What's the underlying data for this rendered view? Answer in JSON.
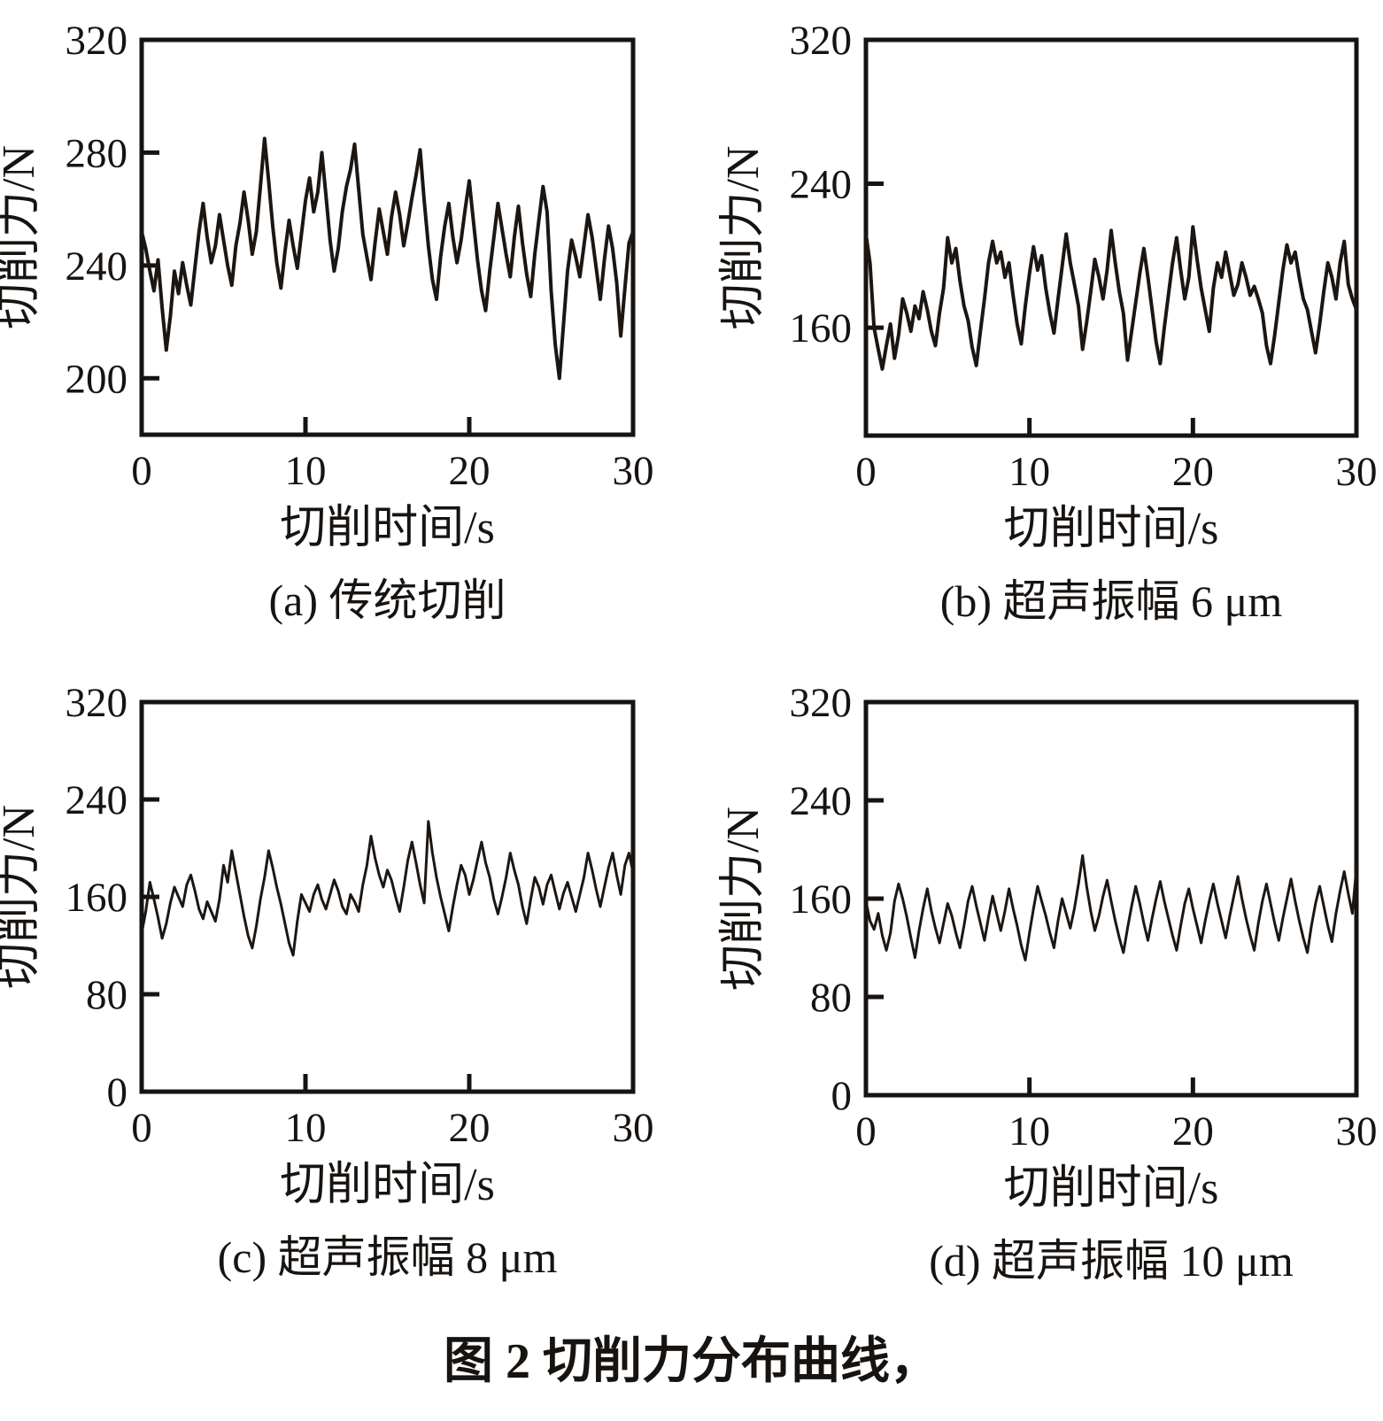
{
  "figure": {
    "title": "图 2  切削力分布曲线，"
  },
  "chart_data": [
    {
      "id": "a",
      "type": "line",
      "caption": "(a) 传统切削",
      "xlabel": "切削时间/s",
      "ylabel": "切削力/N",
      "xlim": [
        0,
        30
      ],
      "xticks": [
        0,
        10,
        20,
        30
      ],
      "ylim": [
        180,
        320
      ],
      "yticks": [
        200,
        240,
        280,
        320
      ],
      "x_step": 0.25,
      "line_color": "#1c1612",
      "values": [
        252,
        246,
        238,
        231,
        242,
        225,
        210,
        222,
        238,
        230,
        241,
        233,
        226,
        239,
        252,
        262,
        250,
        241,
        247,
        258,
        249,
        240,
        233,
        247,
        255,
        266,
        256,
        244,
        252,
        268,
        285,
        270,
        254,
        241,
        232,
        245,
        256,
        247,
        239,
        251,
        263,
        271,
        259,
        266,
        280,
        265,
        249,
        238,
        246,
        259,
        268,
        274,
        283,
        267,
        251,
        243,
        235,
        248,
        260,
        252,
        244,
        257,
        266,
        258,
        247,
        255,
        264,
        272,
        281,
        263,
        247,
        235,
        228,
        243,
        254,
        262,
        250,
        241,
        249,
        260,
        270,
        256,
        242,
        231,
        224,
        238,
        250,
        262,
        253,
        244,
        236,
        250,
        261,
        248,
        237,
        229,
        244,
        256,
        268,
        259,
        231,
        212,
        200,
        219,
        238,
        249,
        243,
        236,
        247,
        258,
        250,
        239,
        228,
        242,
        254,
        246,
        234,
        215,
        232,
        248,
        252
      ]
    },
    {
      "id": "b",
      "type": "line",
      "caption": "(b) 超声振幅 6 μm",
      "xlabel": "切削时间/s",
      "ylabel": "切削力/N",
      "xlim": [
        0,
        30
      ],
      "xticks": [
        0,
        10,
        20,
        30
      ],
      "ylim": [
        100,
        320
      ],
      "yticks": [
        160,
        240,
        320
      ],
      "x_step": 0.25,
      "line_color": "#1c1612",
      "values": [
        212,
        196,
        160,
        148,
        137,
        150,
        162,
        143,
        156,
        176,
        168,
        158,
        172,
        165,
        180,
        170,
        158,
        150,
        168,
        182,
        210,
        196,
        204,
        186,
        172,
        164,
        149,
        139,
        158,
        176,
        196,
        208,
        196,
        202,
        188,
        196,
        178,
        162,
        151,
        172,
        190,
        205,
        192,
        200,
        182,
        168,
        157,
        176,
        194,
        212,
        196,
        184,
        172,
        148,
        163,
        180,
        198,
        188,
        176,
        192,
        214,
        196,
        180,
        168,
        142,
        158,
        174,
        190,
        204,
        188,
        170,
        152,
        140,
        160,
        178,
        196,
        210,
        192,
        176,
        188,
        216,
        198,
        182,
        170,
        158,
        182,
        196,
        188,
        202,
        190,
        178,
        184,
        196,
        188,
        178,
        183,
        176,
        168,
        150,
        140,
        156,
        174,
        192,
        206,
        196,
        202,
        188,
        176,
        170,
        158,
        146,
        162,
        180,
        196,
        188,
        176,
        196,
        208,
        184,
        176,
        170
      ]
    },
    {
      "id": "c",
      "type": "line",
      "caption": "(c) 超声振幅 8 μm",
      "xlabel": "切削时间/s",
      "ylabel": "切削力/N",
      "xlim": [
        0,
        30
      ],
      "xticks": [
        0,
        10,
        20,
        30
      ],
      "ylim": [
        0,
        320
      ],
      "yticks": [
        0,
        80,
        160,
        240,
        320
      ],
      "x_step": 0.25,
      "line_color": "#1c1612",
      "values": [
        130,
        148,
        172,
        158,
        143,
        126,
        138,
        155,
        168,
        160,
        152,
        170,
        178,
        165,
        150,
        142,
        156,
        148,
        140,
        158,
        186,
        172,
        198,
        180,
        162,
        144,
        128,
        118,
        136,
        158,
        176,
        198,
        184,
        168,
        154,
        138,
        122,
        112,
        140,
        162,
        155,
        148,
        162,
        170,
        158,
        150,
        162,
        174,
        165,
        152,
        146,
        162,
        156,
        148,
        170,
        186,
        210,
        192,
        178,
        168,
        182,
        174,
        160,
        148,
        168,
        190,
        205,
        188,
        170,
        155,
        222,
        196,
        176,
        160,
        146,
        132,
        152,
        170,
        186,
        178,
        162,
        174,
        190,
        205,
        188,
        176,
        158,
        146,
        160,
        176,
        196,
        182,
        170,
        152,
        138,
        158,
        176,
        168,
        154,
        170,
        178,
        164,
        150,
        163,
        172,
        160,
        148,
        162,
        176,
        196,
        182,
        166,
        152,
        168,
        184,
        196,
        178,
        162,
        186,
        196,
        180
      ]
    },
    {
      "id": "d",
      "type": "line",
      "caption": "(d) 超声振幅 10 μm",
      "xlabel": "切削时间/s",
      "ylabel": "切削力/N",
      "xlim": [
        0,
        30
      ],
      "xticks": [
        0,
        10,
        20,
        30
      ],
      "ylim": [
        0,
        320
      ],
      "yticks": [
        0,
        80,
        160,
        240,
        320
      ],
      "x_step": 0.25,
      "line_color": "#1c1612",
      "values": [
        158,
        142,
        135,
        148,
        130,
        118,
        132,
        158,
        172,
        160,
        145,
        128,
        112,
        134,
        152,
        168,
        150,
        136,
        124,
        140,
        156,
        146,
        132,
        120,
        138,
        158,
        170,
        154,
        140,
        126,
        145,
        162,
        148,
        134,
        150,
        168,
        152,
        138,
        122,
        110,
        132,
        152,
        170,
        158,
        146,
        132,
        120,
        142,
        160,
        148,
        136,
        152,
        172,
        195,
        170,
        150,
        134,
        146,
        162,
        175,
        158,
        142,
        128,
        116,
        136,
        154,
        170,
        156,
        140,
        126,
        144,
        160,
        174,
        158,
        144,
        130,
        118,
        138,
        156,
        168,
        152,
        138,
        124,
        142,
        158,
        172,
        156,
        142,
        128,
        146,
        162,
        178,
        160,
        144,
        130,
        118,
        140,
        158,
        172,
        156,
        140,
        126,
        144,
        160,
        176,
        158,
        142,
        128,
        116,
        138,
        156,
        170,
        154,
        138,
        125,
        148,
        166,
        182,
        164,
        148,
        185
      ]
    }
  ]
}
